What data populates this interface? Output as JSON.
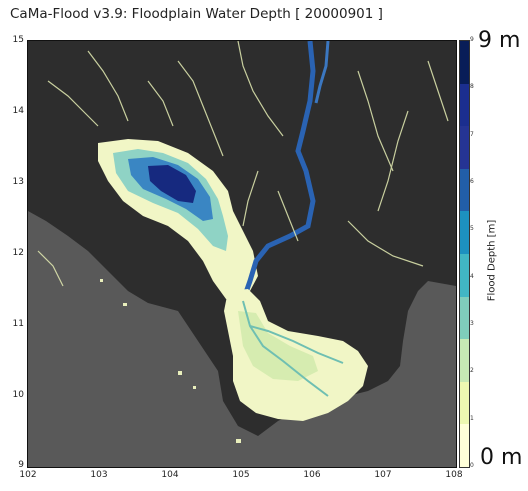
{
  "title": "CaMa-Flood v3.9: Floodplain Water Depth [ 20000901 ]",
  "map": {
    "y_ticks": [
      "15",
      "14",
      "13",
      "12",
      "11",
      "10",
      "9"
    ],
    "x_ticks": [
      "102",
      "103",
      "104",
      "105",
      "106",
      "107",
      "108"
    ],
    "lat_range": [
      9,
      15
    ],
    "lon_range": [
      102,
      108
    ],
    "colors": {
      "land": "#2d2d2d",
      "sea": "#5a5a5a",
      "shallow": "#f3f7c7",
      "mid": "#79cbc0",
      "deep": "#2f7fbf",
      "deepest": "#142a86"
    }
  },
  "colorbar": {
    "label": "Flood Depth [m]",
    "max_label": "9 m",
    "min_label": "0 m",
    "ticks": [
      "9",
      "8",
      "7",
      "6",
      "5",
      "4",
      "3",
      "2",
      "1",
      "0"
    ],
    "colors": [
      "#081d58",
      "#1b2e8f",
      "#253494",
      "#225ea8",
      "#1d91c0",
      "#41b6c4",
      "#7fcdbb",
      "#c7e9b4",
      "#edf8b1",
      "#ffffd9"
    ]
  }
}
